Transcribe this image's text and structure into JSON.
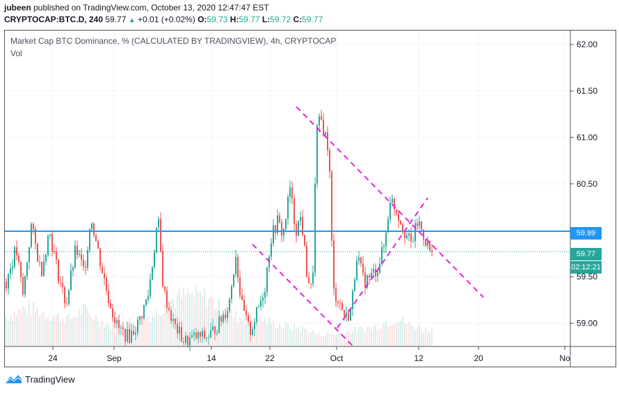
{
  "header": {
    "author": "jubeen",
    "published_text": " published on TradingView.com, October 13, 2020 12:47:47 EST",
    "symbol": "CRYPTOCAP:BTC.D, 240",
    "last": "59.77",
    "change": "+0.01 (+0.02%)",
    "o_label": "O:",
    "o_value": "59.73",
    "h_label": "H:",
    "h_value": "59.77",
    "l_label": "L:",
    "l_value": "59.72",
    "c_label": "C:",
    "c_value": "59.77"
  },
  "legend": {
    "title": "Market Cap BTC Dominance, % (CALCULATED BY TRADINGVIEW), 4h, CRYPTOCAP",
    "vol": "Vol"
  },
  "tags": {
    "level": "59.99",
    "price": "59.77",
    "countdown": "02:12:21"
  },
  "footer": {
    "brand": "TradingView"
  },
  "colors": {
    "up": "#26a69a",
    "down": "#ef5350",
    "hline": "#2196f3",
    "trend": "#e91ee0"
  },
  "chart_data": {
    "type": "candlestick",
    "x_ticks": [
      "24",
      "Sep",
      "14",
      "22",
      "Oct",
      "12",
      "20",
      "No"
    ],
    "y_ticks": [
      "62.00",
      "61.50",
      "61.00",
      "60.50",
      "59.50",
      "59.00"
    ],
    "ylim": [
      58.75,
      62.15
    ],
    "horizontal_line": 59.99,
    "last_price": 59.77,
    "price_path": [
      [
        0,
        59.45
      ],
      [
        14,
        59.8
      ],
      [
        24,
        59.3
      ],
      [
        36,
        60.05
      ],
      [
        50,
        59.55
      ],
      [
        62,
        60.0
      ],
      [
        74,
        59.55
      ],
      [
        86,
        59.2
      ],
      [
        100,
        59.8
      ],
      [
        112,
        59.55
      ],
      [
        122,
        60.15
      ],
      [
        134,
        59.7
      ],
      [
        146,
        59.3
      ],
      [
        160,
        58.95
      ],
      [
        176,
        58.85
      ],
      [
        190,
        59.0
      ],
      [
        204,
        59.3
      ],
      [
        212,
        59.75
      ],
      [
        218,
        60.15
      ],
      [
        226,
        59.35
      ],
      [
        240,
        59.0
      ],
      [
        256,
        58.8
      ],
      [
        272,
        58.85
      ],
      [
        290,
        58.85
      ],
      [
        306,
        59.0
      ],
      [
        320,
        59.2
      ],
      [
        330,
        59.75
      ],
      [
        338,
        59.2
      ],
      [
        350,
        58.9
      ],
      [
        360,
        59.1
      ],
      [
        372,
        59.4
      ],
      [
        380,
        59.9
      ],
      [
        390,
        60.1
      ],
      [
        398,
        59.95
      ],
      [
        408,
        60.45
      ],
      [
        416,
        60.0
      ],
      [
        424,
        60.15
      ],
      [
        432,
        59.55
      ],
      [
        440,
        59.3
      ],
      [
        446,
        61.05
      ],
      [
        452,
        61.2
      ],
      [
        458,
        61.05
      ],
      [
        464,
        60.85
      ],
      [
        470,
        59.35
      ],
      [
        478,
        59.25
      ],
      [
        488,
        59.05
      ],
      [
        496,
        59.15
      ],
      [
        504,
        59.75
      ],
      [
        514,
        59.45
      ],
      [
        524,
        59.5
      ],
      [
        534,
        59.6
      ],
      [
        544,
        59.85
      ],
      [
        552,
        60.35
      ],
      [
        562,
        60.2
      ],
      [
        572,
        60.0
      ],
      [
        582,
        59.85
      ],
      [
        592,
        60.1
      ],
      [
        600,
        59.95
      ],
      [
        608,
        59.8
      ],
      [
        616,
        59.65
      ],
      [
        622,
        59.77
      ]
    ],
    "volume_profile": [
      [
        0,
        0.55
      ],
      [
        30,
        0.72
      ],
      [
        60,
        0.6
      ],
      [
        90,
        0.5
      ],
      [
        110,
        0.68
      ],
      [
        140,
        0.45
      ],
      [
        160,
        0.3
      ],
      [
        180,
        0.48
      ],
      [
        200,
        0.55
      ],
      [
        215,
        0.6
      ],
      [
        230,
        0.82
      ],
      [
        260,
        0.95
      ],
      [
        290,
        0.9
      ],
      [
        320,
        0.6
      ],
      [
        340,
        0.52
      ],
      [
        370,
        0.48
      ],
      [
        400,
        0.38
      ],
      [
        430,
        0.32
      ],
      [
        450,
        0.22
      ],
      [
        480,
        0.25
      ],
      [
        500,
        0.3
      ],
      [
        530,
        0.36
      ],
      [
        560,
        0.52
      ],
      [
        580,
        0.4
      ],
      [
        600,
        0.32
      ],
      [
        622,
        0.3
      ]
    ],
    "trendlines": [
      {
        "name": "resistance",
        "from": [
          0.0,
          61.33
        ],
        "to": [
          1.0,
          59.28
        ]
      },
      {
        "name": "lower-channel",
        "from": [
          0.0,
          59.85
        ],
        "to": [
          1.0,
          58.75
        ]
      },
      {
        "name": "breakout",
        "from": [
          0.0,
          58.95
        ],
        "to": [
          1.0,
          60.35
        ]
      }
    ]
  }
}
